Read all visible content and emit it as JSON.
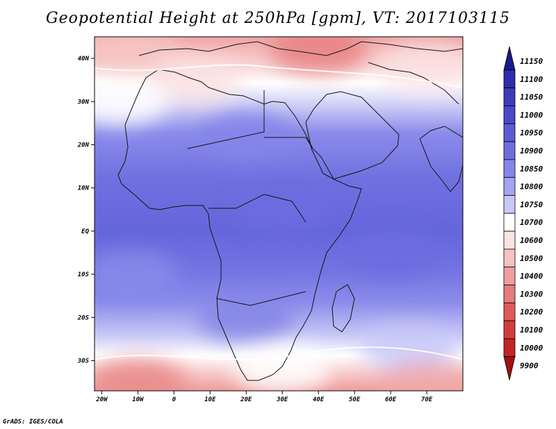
{
  "chart_data": {
    "type": "heatmap",
    "title": "Geopotential Height at 250hPa [gpm], VT: 2017103115",
    "lon_range": [
      -22,
      80
    ],
    "lat_range": [
      -37,
      45
    ],
    "x_ticks": [
      {
        "value": -20,
        "label": "20W"
      },
      {
        "value": -10,
        "label": "10W"
      },
      {
        "value": 0,
        "label": "0"
      },
      {
        "value": 10,
        "label": "10E"
      },
      {
        "value": 20,
        "label": "20E"
      },
      {
        "value": 30,
        "label": "30E"
      },
      {
        "value": 40,
        "label": "40E"
      },
      {
        "value": 50,
        "label": "50E"
      },
      {
        "value": 60,
        "label": "60E"
      },
      {
        "value": 70,
        "label": "70E"
      }
    ],
    "y_ticks": [
      {
        "value": 40,
        "label": "40N"
      },
      {
        "value": 30,
        "label": "30N"
      },
      {
        "value": 20,
        "label": "20N"
      },
      {
        "value": 10,
        "label": "10N"
      },
      {
        "value": 0,
        "label": "EQ"
      },
      {
        "value": -10,
        "label": "10S"
      },
      {
        "value": -20,
        "label": "20S"
      },
      {
        "value": -30,
        "label": "30S"
      }
    ],
    "colorbar": {
      "levels": [
        "11150",
        "11100",
        "11050",
        "11000",
        "10950",
        "10900",
        "10850",
        "10800",
        "10750",
        "10700",
        "10600",
        "10500",
        "10400",
        "10300",
        "10200",
        "10100",
        "10000",
        "9900"
      ],
      "colors": [
        "#1a1a8c",
        "#2e2eaa",
        "#3c3cbd",
        "#4a4ac9",
        "#5c5cd6",
        "#6e6ee0",
        "#8686ea",
        "#a4a4f2",
        "#c8c8f8",
        "#ffffff",
        "#fbe4e4",
        "#f6c2c2",
        "#ef9f9f",
        "#e87c7c",
        "#df5a5a",
        "#d43c3c",
        "#c42424",
        "#a01010"
      ]
    },
    "field_samples": [
      {
        "lon": 40,
        "lat": 42,
        "color": "#e88080"
      },
      {
        "lon": -12,
        "lat": 42,
        "color": "#f7c4c4"
      },
      {
        "lon": 5,
        "lat": 35,
        "color": "#fae0e0"
      },
      {
        "lon": -15,
        "lat": 30,
        "color": "#ffffff"
      },
      {
        "lon": 70,
        "lat": 38,
        "color": "#fbe2e2"
      },
      {
        "lon": 20,
        "lat": 22,
        "color": "#8484ea"
      },
      {
        "lon": 30,
        "lat": 5,
        "color": "#6c6ce0"
      },
      {
        "lon": 60,
        "lat": -5,
        "color": "#6c6ce0"
      },
      {
        "lon": -12,
        "lat": -10,
        "color": "#8a8aea"
      },
      {
        "lon": 20,
        "lat": -20,
        "color": "#8585e6"
      },
      {
        "lon": 65,
        "lat": -27,
        "color": "#c8c8f8"
      },
      {
        "lon": 30,
        "lat": -32,
        "color": "#ffffff"
      },
      {
        "lon": -10,
        "lat": -35,
        "color": "#ea8a8a"
      },
      {
        "lon": 70,
        "lat": -36,
        "color": "#f0a8a8"
      }
    ]
  },
  "footer": "GrADS: IGES/COLA"
}
